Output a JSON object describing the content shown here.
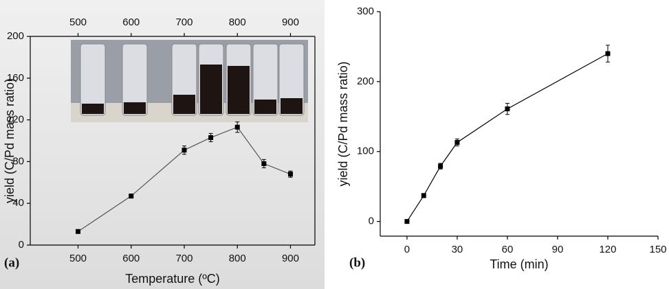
{
  "chart_data": [
    {
      "type": "line",
      "label": "(a)",
      "x_label": "Temperature (ºC)",
      "y_label": "yield (C/Pd mass ratio)",
      "x": [
        500,
        600,
        700,
        750,
        800,
        850,
        900
      ],
      "series": [
        {
          "color": "#555555",
          "values": [
            13,
            47,
            91,
            103,
            113,
            78,
            68
          ],
          "errors": [
            1,
            2,
            4,
            4,
            5,
            4,
            3
          ]
        }
      ],
      "xlim": [
        410,
        946
      ],
      "xticks": [
        500,
        600,
        700,
        800,
        900
      ],
      "ylim": [
        0,
        200
      ],
      "yticks": [
        0,
        40,
        80,
        120,
        160,
        200
      ],
      "top_axis": true,
      "box": true
    },
    {
      "type": "line",
      "label": "(b)",
      "x_label": "Time (min)",
      "y_label": "yield (C/Pd mass ratio)",
      "x": [
        0,
        10,
        20,
        30,
        60,
        120
      ],
      "series": [
        {
          "color": "#000000",
          "values": [
            0,
            37,
            79,
            113,
            161,
            240
          ],
          "errors": [
            2,
            3,
            4,
            5,
            8,
            12
          ]
        }
      ],
      "xlim": [
        -16,
        150
      ],
      "xticks": [
        0,
        30,
        60,
        90,
        120,
        150
      ],
      "ylim": [
        -21,
        300
      ],
      "yticks": [
        0,
        100,
        200,
        300
      ],
      "top_axis": false,
      "box": false
    }
  ]
}
